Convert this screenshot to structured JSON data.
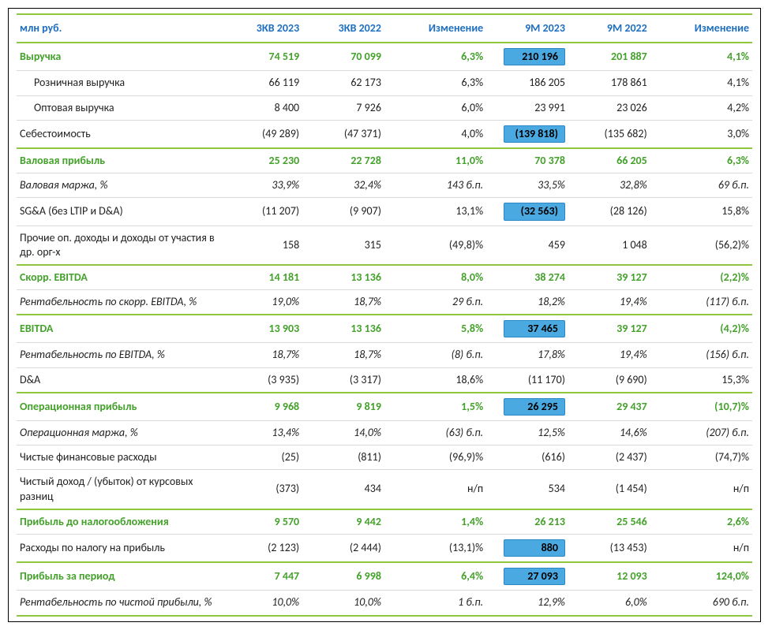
{
  "header": {
    "label": "млн руб.",
    "c1": "3КВ 2023",
    "c2": "3КВ 2022",
    "c3": "Изменение",
    "c4": "9М 2023",
    "c5": "9М 2022",
    "c6": "Изменение"
  },
  "rows": [
    {
      "id": "revenue",
      "type": "green",
      "label": "Выручка",
      "c1": "74 519",
      "c2": "70 099",
      "c3": "6,3%",
      "c4": "210 196",
      "c4_hl": true,
      "c5": "201 887",
      "c6": "4,1%"
    },
    {
      "id": "retail-rev",
      "type": "plain",
      "indent": true,
      "label": "Розничная выручка",
      "c1": "66 119",
      "c2": "62 173",
      "c3": "6,3%",
      "c4": "186 205",
      "c5": "178 861",
      "c6": "4,1%"
    },
    {
      "id": "wholesale-rev",
      "type": "plain",
      "indent": true,
      "label": "Оптовая выручка",
      "c1": "8 400",
      "c2": "7 926",
      "c3": "6,0%",
      "c4": "23 991",
      "c5": "23 026",
      "c6": "4,2%"
    },
    {
      "id": "cogs",
      "type": "plain",
      "sep": "green",
      "label": "Себестоимость",
      "c1": "(49 289)",
      "c2": "(47 371)",
      "c3": "4,0%",
      "c4": "(139 818)",
      "c4_hl": true,
      "c5": "(135 682)",
      "c6": "3,0%"
    },
    {
      "id": "gross-profit",
      "type": "green",
      "label": "Валовая прибыль",
      "c1": "25 230",
      "c2": "22 728",
      "c3": "11,0%",
      "c4": "70 378",
      "c5": "66 205",
      "c6": "6,3%"
    },
    {
      "id": "gross-margin",
      "type": "italic",
      "label": "Валовая маржа, %",
      "c1": "33,9%",
      "c2": "32,4%",
      "c3": "143 б.п.",
      "c4": "33,5%",
      "c5": "32,8%",
      "c6": "69 б.п."
    },
    {
      "id": "sga",
      "type": "plain",
      "label": "SG&A (без LTIP и D&A)",
      "c1": "(11 207)",
      "c2": "(9 907)",
      "c3": "13,1%",
      "c4": "(32 563)",
      "c4_hl": true,
      "c5": "(28 126)",
      "c6": "15,8%"
    },
    {
      "id": "other-op",
      "type": "plain",
      "sep": "green",
      "wrap": true,
      "label": "Прочие оп. доходы и доходы от участия в др. орг-х",
      "c1": "158",
      "c2": "315",
      "c3": "(49,8)%",
      "c4": "459",
      "c5": "1 048",
      "c6": "(56,2)%"
    },
    {
      "id": "adj-ebitda",
      "type": "green",
      "label": "Скорр. EBITDA",
      "c1": "14 181",
      "c2": "13 136",
      "c3": "8,0%",
      "c4": "38 274",
      "c5": "39 127",
      "c6": "(2,2)%"
    },
    {
      "id": "adj-ebitda-margin",
      "type": "italic",
      "sep": "green",
      "wrap": true,
      "label": "Рентабельность по скорр. EBITDA, %",
      "c1": "19,0%",
      "c2": "18,7%",
      "c3": "29 б.п.",
      "c4": "18,2%",
      "c5": "19,4%",
      "c6": "(117) б.п."
    },
    {
      "id": "ebitda",
      "type": "green",
      "label": "EBITDA",
      "c1": "13 903",
      "c2": "13 136",
      "c3": "5,8%",
      "c4": "37 465",
      "c4_hl": true,
      "c5": "39 127",
      "c6": "(4,2)%"
    },
    {
      "id": "ebitda-margin",
      "type": "italic",
      "label": "Рентабельность по EBITDA, %",
      "c1": "18,7%",
      "c2": "18,7%",
      "c3": "(8) б.п.",
      "c4": "17,8%",
      "c5": "19,4%",
      "c6": "(156) б.п."
    },
    {
      "id": "da",
      "type": "plain",
      "sep": "green",
      "label": "D&A",
      "c1": "(3 935)",
      "c2": "(3 317)",
      "c3": "18,6%",
      "c4": "(11 170)",
      "c5": "(9 690)",
      "c6": "15,3%"
    },
    {
      "id": "op-profit",
      "type": "green",
      "label": "Операционная прибыль",
      "c1": "9 968",
      "c2": "9 819",
      "c3": "1,5%",
      "c4": "26 295",
      "c4_hl": true,
      "c5": "29 437",
      "c6": "(10,7)%"
    },
    {
      "id": "op-margin",
      "type": "italic",
      "label": "Операционная маржа, %",
      "c1": "13,4%",
      "c2": "14,0%",
      "c3": "(63) б.п.",
      "c4": "12,5%",
      "c5": "14,6%",
      "c6": "(207) б.п."
    },
    {
      "id": "net-fin",
      "type": "plain",
      "label": "Чистые финансовые расходы",
      "c1": "(25)",
      "c2": "(811)",
      "c3": "(96,9)%",
      "c4": "(616)",
      "c5": "(2 437)",
      "c6": "(74,7)%"
    },
    {
      "id": "fx",
      "type": "plain",
      "sep": "green",
      "wrap": true,
      "label": "Чистый доход / (убыток) от курсовых разниц",
      "c1": "(373)",
      "c2": "434",
      "c3": "н/п",
      "c4": "534",
      "c5": "(1 454)",
      "c6": "н/п"
    },
    {
      "id": "pbt",
      "type": "green",
      "label": "Прибыль до налогообложения",
      "c1": "9 570",
      "c2": "9 442",
      "c3": "1,4%",
      "c4": "26 213",
      "c5": "25 546",
      "c6": "2,6%"
    },
    {
      "id": "tax",
      "type": "plain",
      "sep": "green",
      "label": "Расходы по налогу на прибыль",
      "c1": "(2 123)",
      "c2": "(2 444)",
      "c3": "(13,1)%",
      "c4": "880",
      "c4_hl": true,
      "c5": "(13 453)",
      "c6": "н/п"
    },
    {
      "id": "net-profit",
      "type": "green",
      "label": "Прибыль за период",
      "c1": "7 447",
      "c2": "6 998",
      "c3": "6,4%",
      "c4": "27 093",
      "c4_hl": true,
      "c5": "12 093",
      "c6": "124,0%"
    },
    {
      "id": "net-margin",
      "type": "italic",
      "last": true,
      "wrap": true,
      "label": "Рентабельность по чистой прибыли, %",
      "c1": "10,0%",
      "c2": "10,0%",
      "c3": "1 б.п.",
      "c4": "12,9%",
      "c5": "6,0%",
      "c6": "690 б.п."
    }
  ],
  "colors": {
    "header_text": "#1f6fc0",
    "accent_green": "#8fc63f",
    "row_green_text": "#44a12b",
    "highlight_bg": "#4ba9e2",
    "highlight_border": "#2b88c4",
    "grid": "#d9d9d9"
  }
}
